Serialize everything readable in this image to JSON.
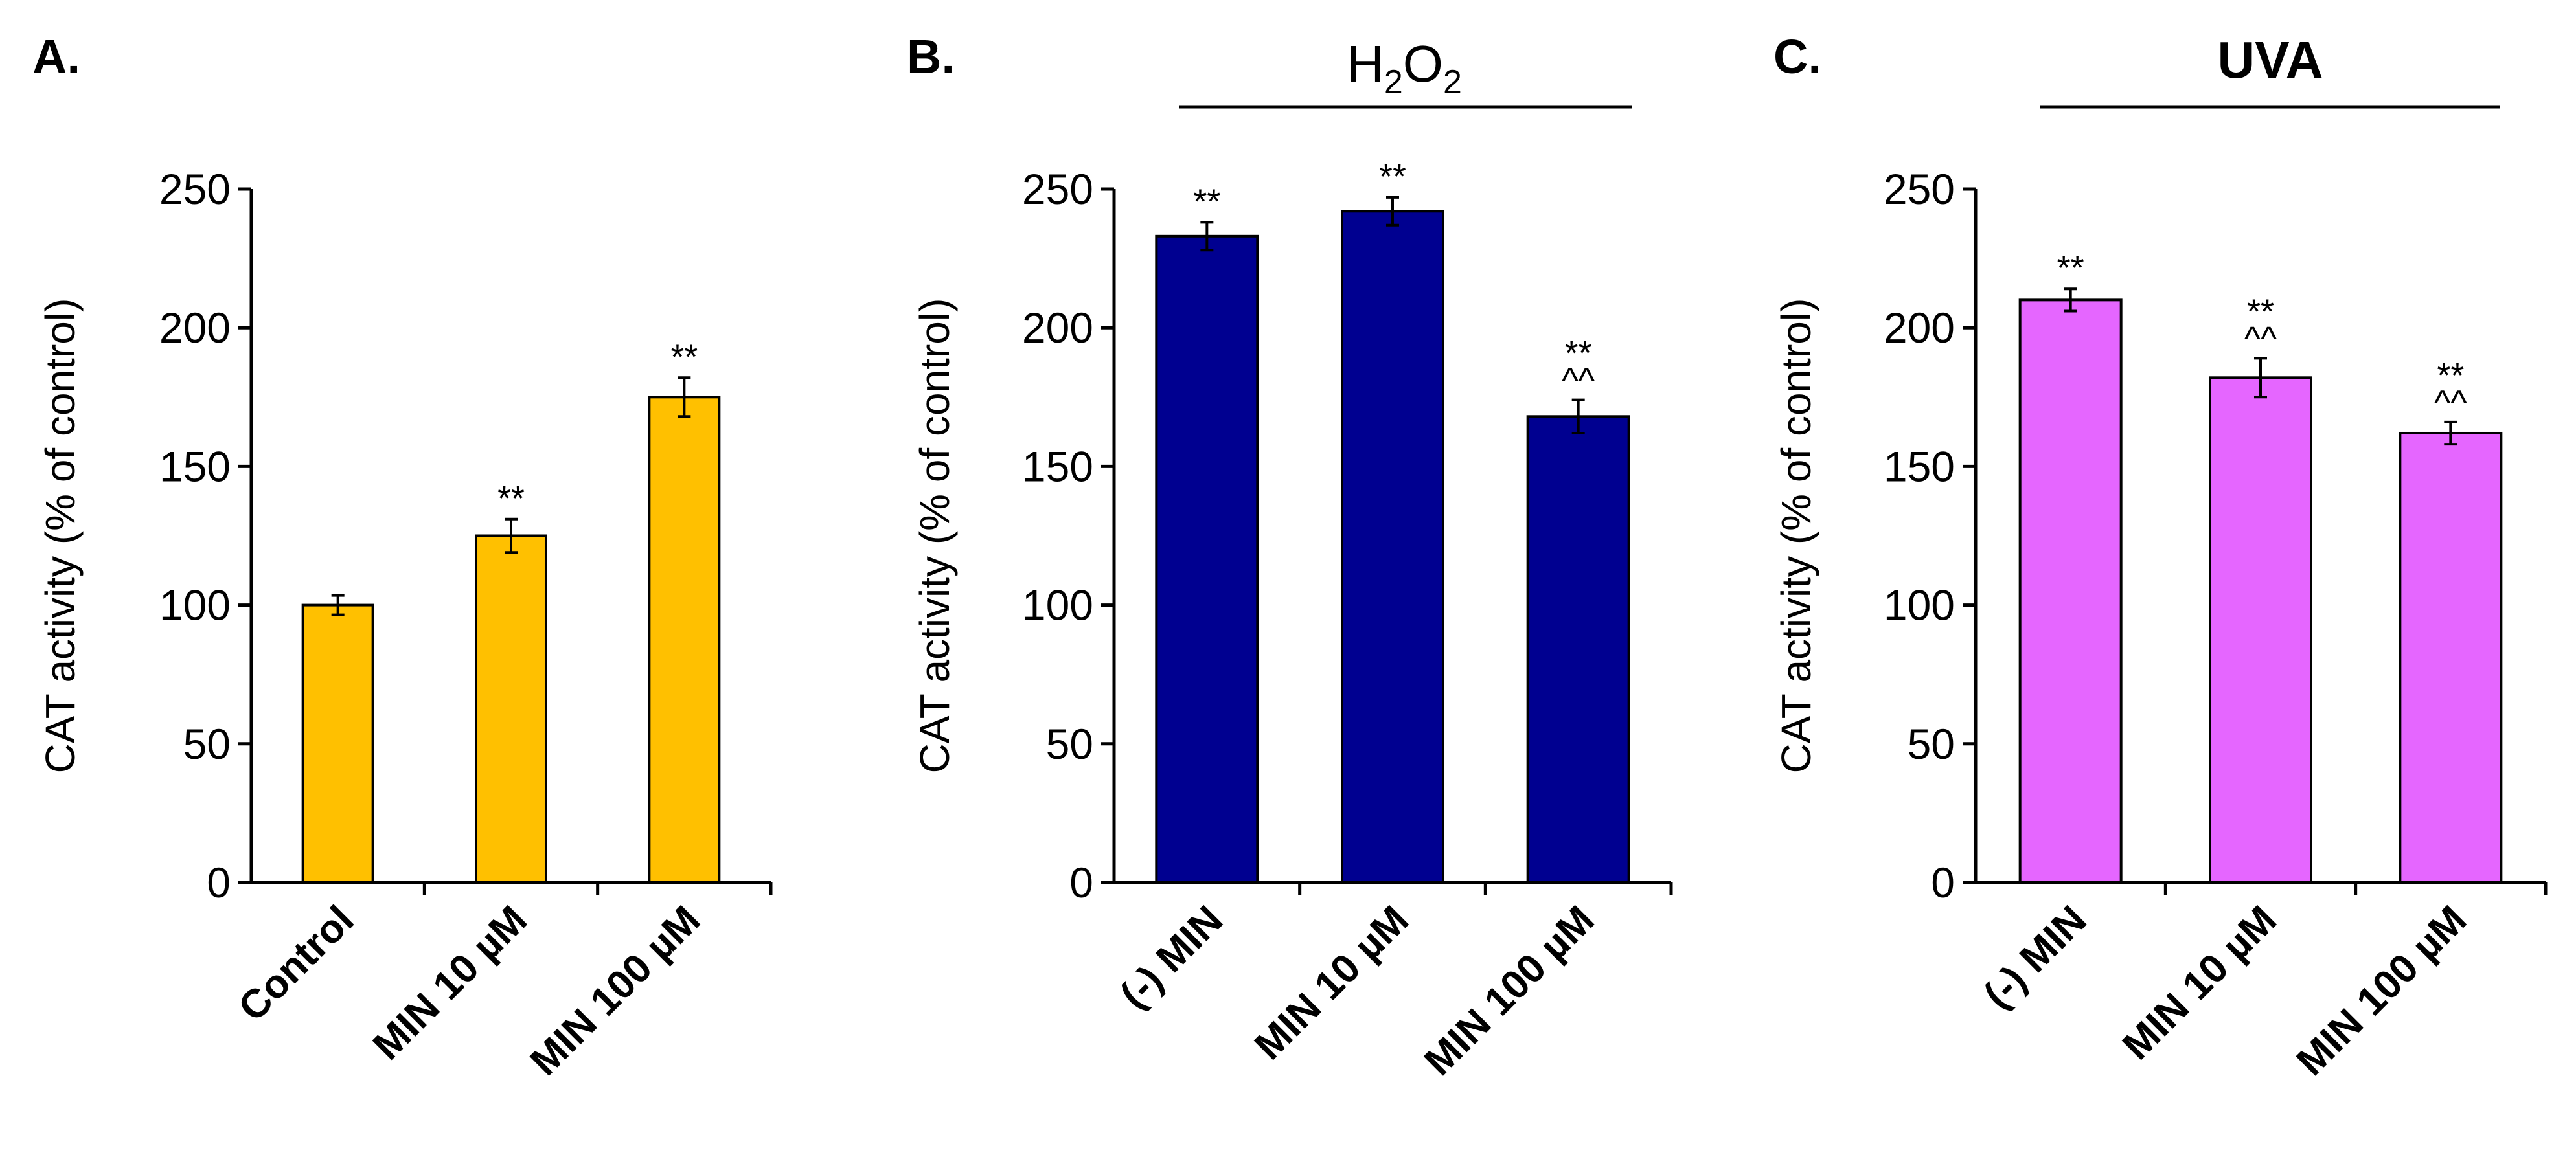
{
  "chart_data": [
    {
      "type": "bar",
      "panel": "A.",
      "treatment": "",
      "categories": [
        "Control",
        "MIN 10 µM",
        "MIN 100 µM"
      ],
      "values": [
        100,
        125,
        175
      ],
      "errors": [
        3.5,
        6,
        7
      ],
      "significance": [
        [],
        [
          "**"
        ],
        [
          "**"
        ]
      ],
      "ylabel": "CAT activity (% of control)",
      "ylim": [
        0,
        250
      ],
      "yticks": [
        0,
        50,
        100,
        150,
        200,
        250
      ],
      "color": "#FFC000"
    },
    {
      "type": "bar",
      "panel": "B.",
      "treatment": "H2O2",
      "categories": [
        "(-) MIN",
        "MIN 10 µM",
        "MIN 100 µM"
      ],
      "values": [
        233,
        242,
        168
      ],
      "errors": [
        5,
        5,
        6
      ],
      "significance": [
        [
          "**"
        ],
        [
          "**"
        ],
        [
          "**",
          "^^"
        ]
      ],
      "ylabel": "CAT activity (% of control)",
      "ylim": [
        0,
        250
      ],
      "yticks": [
        0,
        50,
        100,
        150,
        200,
        250
      ],
      "color": "#000090"
    },
    {
      "type": "bar",
      "panel": "C.",
      "treatment": "UVA",
      "categories": [
        "(-) MIN",
        "MIN 10 µM",
        "MIN 100 µM"
      ],
      "values": [
        210,
        182,
        162
      ],
      "errors": [
        4,
        7,
        4
      ],
      "significance": [
        [
          "**"
        ],
        [
          "**",
          "^^"
        ],
        [
          "**",
          "^^"
        ]
      ],
      "ylabel": "CAT activity (% of control)",
      "ylim": [
        0,
        250
      ],
      "yticks": [
        0,
        50,
        100,
        150,
        200,
        250
      ],
      "color": "#E566FF"
    }
  ],
  "colors": {
    "axis": "#000000",
    "background": "#FFFFFF"
  }
}
